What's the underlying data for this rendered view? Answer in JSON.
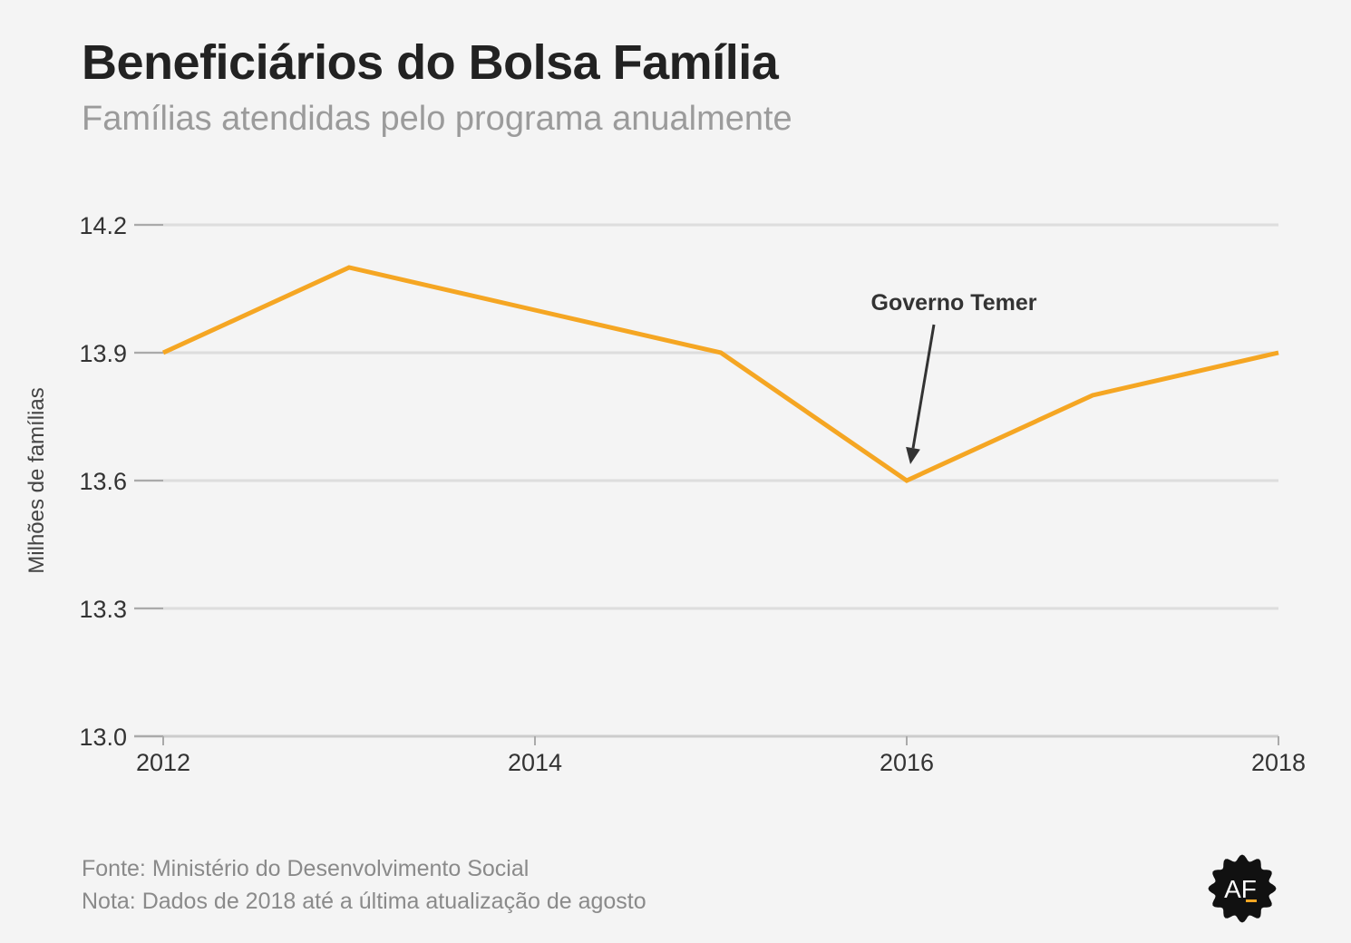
{
  "header": {
    "title": "Beneficiários do Bolsa Família",
    "subtitle": "Famílias atendidas pelo programa anualmente"
  },
  "footer": {
    "source": "Fonte: Ministério do Desenvolvimento Social",
    "note": "Nota: Dados de 2018 até a última atualização de agosto"
  },
  "logo": {
    "text": "AF",
    "icon": "af-logo-badge"
  },
  "colors": {
    "line": "#f5a623",
    "grid": "#dddddd",
    "axis_text": "#333333",
    "annotation": "#333333",
    "logo_bg": "#111111",
    "logo_accent": "#f5a623"
  },
  "chart_data": {
    "type": "line",
    "title": "Beneficiários do Bolsa Família",
    "subtitle": "Famílias atendidas pelo programa anualmente",
    "xlabel": "",
    "ylabel": "Milhões de famílias",
    "x": [
      2012,
      2013,
      2014,
      2015,
      2016,
      2017,
      2018
    ],
    "series": [
      {
        "values": [
          13.9,
          14.1,
          14.0,
          13.9,
          13.6,
          13.8,
          13.9
        ]
      }
    ],
    "xlim": [
      2012,
      2018
    ],
    "ylim": [
      13.0,
      14.2
    ],
    "xticks": [
      2012,
      2014,
      2016,
      2018
    ],
    "yticks": [
      13.0,
      13.3,
      13.6,
      13.9,
      14.2
    ],
    "ytick_labels": [
      "13.0",
      "13.3",
      "13.6",
      "13.9",
      "14.2"
    ],
    "grid": true,
    "annotations": [
      {
        "text": "Governo Temer",
        "x": 2016,
        "y": 13.6
      }
    ]
  }
}
